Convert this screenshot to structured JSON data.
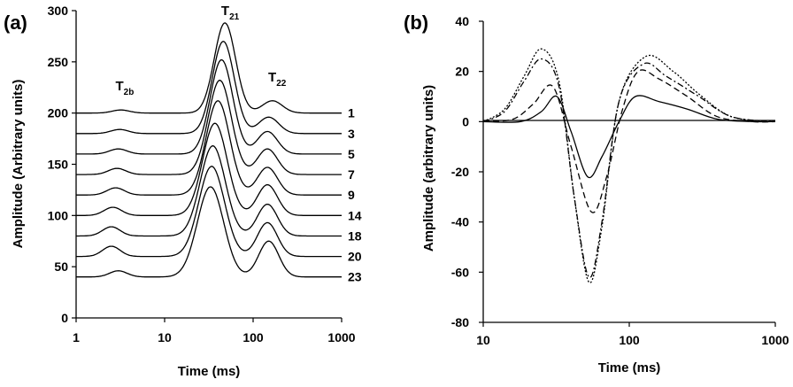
{
  "chart_data": [
    {
      "type": "line",
      "panel_label": "(a)",
      "xlabel": "Time (ms)",
      "ylabel": "Amplitude (Arbitrary units)",
      "x_scale": "log",
      "xlim": [
        1,
        1000
      ],
      "ylim": [
        0,
        300
      ],
      "x_ticks": [
        "1",
        "10",
        "100",
        "1000"
      ],
      "y_ticks": [
        "0",
        "50",
        "100",
        "150",
        "200",
        "250",
        "300"
      ],
      "grid": false,
      "peak_labels": [
        {
          "text": "T",
          "sub": "2b",
          "x": 3.2
        },
        {
          "text": "T",
          "sub": "21",
          "x": 50
        },
        {
          "text": "T",
          "sub": "22",
          "x": 170
        }
      ],
      "series": [
        {
          "name": "1",
          "baseline": 200,
          "peaks": [
            {
              "x": 3.2,
              "y": 203
            },
            {
              "x": 48,
              "y": 288
            },
            {
              "x": 165,
              "y": 212
            }
          ]
        },
        {
          "name": "3",
          "baseline": 180,
          "peaks": [
            {
              "x": 3.1,
              "y": 184
            },
            {
              "x": 46,
              "y": 270
            },
            {
              "x": 150,
              "y": 196
            }
          ]
        },
        {
          "name": "5",
          "baseline": 160,
          "peaks": [
            {
              "x": 3.0,
              "y": 165
            },
            {
              "x": 44,
              "y": 252
            },
            {
              "x": 145,
              "y": 182
            }
          ]
        },
        {
          "name": "7",
          "baseline": 140,
          "peaks": [
            {
              "x": 2.9,
              "y": 146
            },
            {
              "x": 42,
              "y": 232
            },
            {
              "x": 145,
              "y": 165
            }
          ]
        },
        {
          "name": "9",
          "baseline": 120,
          "peaks": [
            {
              "x": 2.8,
              "y": 127
            },
            {
              "x": 40,
              "y": 212
            },
            {
              "x": 145,
              "y": 147
            }
          ]
        },
        {
          "name": "14",
          "baseline": 100,
          "peaks": [
            {
              "x": 2.6,
              "y": 108
            },
            {
              "x": 37,
              "y": 190
            },
            {
              "x": 145,
              "y": 130
            }
          ]
        },
        {
          "name": "18",
          "baseline": 80,
          "peaks": [
            {
              "x": 2.5,
              "y": 89
            },
            {
              "x": 35,
              "y": 168
            },
            {
              "x": 145,
              "y": 111
            }
          ]
        },
        {
          "name": "20",
          "baseline": 60,
          "peaks": [
            {
              "x": 2.5,
              "y": 70
            },
            {
              "x": 34,
              "y": 148
            },
            {
              "x": 145,
              "y": 93
            }
          ]
        },
        {
          "name": "23",
          "baseline": 40,
          "peaks": [
            {
              "x": 3.0,
              "y": 46
            },
            {
              "x": 33,
              "y": 128
            },
            {
              "x": 150,
              "y": 75
            }
          ]
        }
      ]
    },
    {
      "type": "line",
      "panel_label": "(b)",
      "xlabel": "Time (ms)",
      "ylabel": "Amplitude (arbitrary units)",
      "x_scale": "log",
      "xlim": [
        10,
        1000
      ],
      "ylim": [
        -80,
        40
      ],
      "x_ticks": [
        "10",
        "100",
        "1000"
      ],
      "y_ticks": [
        "40",
        "20",
        "0",
        "-20",
        "-40",
        "-60",
        "-80"
      ],
      "grid": false,
      "series": [
        {
          "style": "solid",
          "points": [
            [
              10,
              0
            ],
            [
              18,
              0
            ],
            [
              25,
              4
            ],
            [
              32,
              10
            ],
            [
              40,
              -4
            ],
            [
              52,
              -22
            ],
            [
              65,
              -14
            ],
            [
              85,
              0
            ],
            [
              110,
              10
            ],
            [
              160,
              8
            ],
            [
              250,
              5
            ],
            [
              400,
              1
            ],
            [
              700,
              0
            ],
            [
              1000,
              0
            ]
          ]
        },
        {
          "style": "dashed",
          "points": [
            [
              10,
              0
            ],
            [
              16,
              1
            ],
            [
              22,
              7
            ],
            [
              30,
              14
            ],
            [
              40,
              -10
            ],
            [
              55,
              -36
            ],
            [
              70,
              -22
            ],
            [
              90,
              5
            ],
            [
              115,
              20
            ],
            [
              160,
              17
            ],
            [
              250,
              10
            ],
            [
              400,
              2
            ],
            [
              700,
              0
            ],
            [
              1000,
              0
            ]
          ]
        },
        {
          "style": "dotdash",
          "points": [
            [
              10,
              0
            ],
            [
              14,
              4
            ],
            [
              19,
              16
            ],
            [
              25,
              25
            ],
            [
              33,
              14
            ],
            [
              42,
              -30
            ],
            [
              53,
              -62
            ],
            [
              65,
              -40
            ],
            [
              85,
              8
            ],
            [
              125,
              23
            ],
            [
              180,
              18
            ],
            [
              300,
              10
            ],
            [
              500,
              2
            ],
            [
              1000,
              0
            ]
          ]
        },
        {
          "style": "dotted",
          "points": [
            [
              10,
              0
            ],
            [
              14,
              5
            ],
            [
              19,
              18
            ],
            [
              25,
              29
            ],
            [
              33,
              16
            ],
            [
              42,
              -30
            ],
            [
              53,
              -64
            ],
            [
              65,
              -42
            ],
            [
              85,
              8
            ],
            [
              130,
              26
            ],
            [
              200,
              20
            ],
            [
              300,
              11
            ],
            [
              500,
              2
            ],
            [
              1000,
              0
            ]
          ]
        }
      ]
    }
  ]
}
